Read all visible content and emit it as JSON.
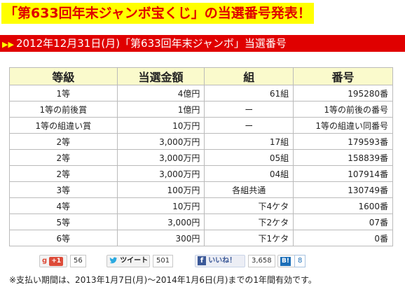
{
  "headline": "「第633回年末ジャンボ宝くじ」の当選番号発表！",
  "section": {
    "arrows": "▶▶",
    "title": "2012年12月31日(月)「第633回年末ジャンボ」当選番号"
  },
  "table": {
    "headers": [
      "等級",
      "当選金額",
      "組",
      "番号"
    ],
    "rows": [
      [
        "1等",
        "4億円",
        "61組",
        "195280番"
      ],
      [
        "1等の前後賞",
        "1億円",
        "ー",
        "1等の前後の番号"
      ],
      [
        "1等の組違い賞",
        "10万円",
        "ー",
        "1等の組違い同番号"
      ],
      [
        "2等",
        "3,000万円",
        "17組",
        "179593番"
      ],
      [
        "2等",
        "3,000万円",
        "05組",
        "158839番"
      ],
      [
        "2等",
        "3,000万円",
        "04組",
        "107914番"
      ],
      [
        "3等",
        "100万円",
        "各組共通",
        "130749番"
      ],
      [
        "4等",
        "10万円",
        "下4ケタ",
        "1600番"
      ],
      [
        "5等",
        "3,000円",
        "下2ケタ",
        "07番"
      ],
      [
        "6等",
        "300円",
        "下1ケタ",
        "0番"
      ]
    ]
  },
  "social": {
    "gplus": {
      "icon": "g-plus-icon",
      "label": "g",
      "badge": "+1",
      "count": "56"
    },
    "tweet": {
      "icon": "twitter-bird-icon",
      "label": "ツイート",
      "count": "501"
    },
    "like": {
      "icon": "facebook-icon",
      "badge": "f",
      "label": "いいね！",
      "count": "3,658"
    },
    "hatena": {
      "icon": "hatena-bookmark-icon",
      "badge": "B!",
      "count": "8"
    }
  },
  "note": "※支払い期間は、2013年1月7日(月)〜2014年1月6日(月)までの1年間有効です。",
  "colors": {
    "headline_bg": "#ffff00",
    "headline_text": "#e00000",
    "bar_bg": "#e00000",
    "header_bg": "#fafacc"
  }
}
